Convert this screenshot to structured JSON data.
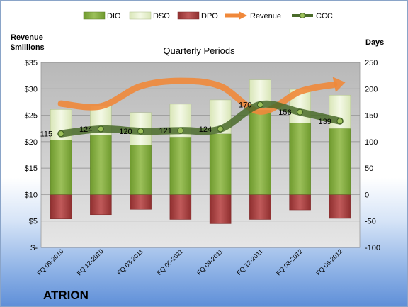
{
  "company": "ATRION",
  "chart_data": {
    "type": "bar",
    "subtitle": "Quarterly Periods",
    "left_axis_title": [
      "Revenue",
      "$millions"
    ],
    "right_axis_title": "Days",
    "categories": [
      "FQ 09-2010",
      "FQ 12-2010",
      "FQ 03-2011",
      "FQ 06-2011",
      "FQ 09-2011",
      "FQ 12-2011",
      "FQ 03-2012",
      "FQ 06-2012"
    ],
    "left_ticks": [
      "$-",
      "$5",
      "$10",
      "$15",
      "$20",
      "$25",
      "$30",
      "$35"
    ],
    "right_ticks": [
      "-100",
      "-50",
      "0",
      "50",
      "100",
      "150",
      "200",
      "250"
    ],
    "ylim_left": [
      0,
      35
    ],
    "ylim_right": [
      -100,
      250
    ],
    "series": [
      {
        "name": "DIO",
        "kind": "stacked-bar",
        "axis": "right",
        "color": "#7fa83a",
        "values": [
          103,
          112,
          94,
          109,
          115,
          160,
          135,
          125
        ]
      },
      {
        "name": "DSO",
        "kind": "stacked-bar",
        "axis": "right",
        "color": "#e6efcc",
        "values": [
          58,
          56,
          61,
          62,
          64,
          57,
          64,
          63
        ]
      },
      {
        "name": "DPO",
        "kind": "negative-bar",
        "axis": "right",
        "color": "#a83a3a",
        "values": [
          -46,
          -38,
          -28,
          -47,
          -55,
          -47,
          -29,
          -45
        ]
      },
      {
        "name": "Revenue",
        "kind": "line",
        "axis": "left",
        "color": "#f0883a",
        "values": [
          27.2,
          26.7,
          30.5,
          31.5,
          30.5,
          25.7,
          29.5,
          30.8
        ]
      },
      {
        "name": "CCC",
        "kind": "line",
        "axis": "right",
        "color": "#4a6b2a",
        "values": [
          115,
          124,
          120,
          121,
          124,
          170,
          156,
          139
        ]
      }
    ],
    "ccc_labels": [
      "115",
      "124",
      "120",
      "121",
      "124",
      "170",
      "156",
      "139"
    ],
    "grid": true,
    "legend_position": "top"
  }
}
